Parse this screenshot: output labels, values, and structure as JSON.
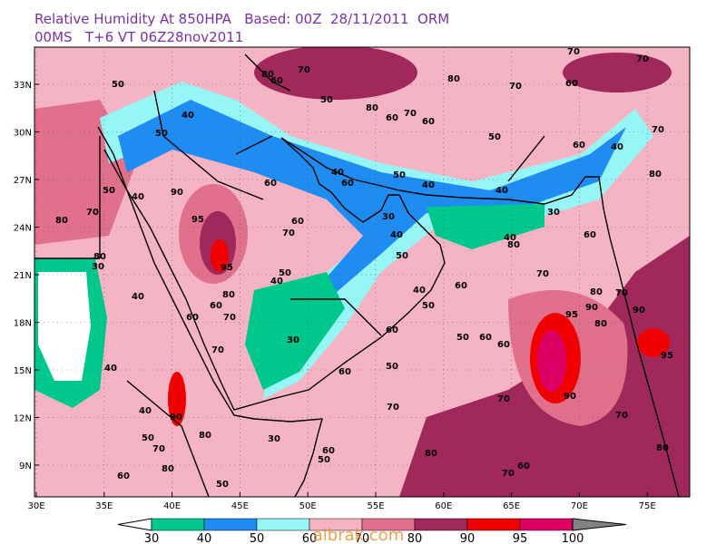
{
  "header": {
    "line1": "Relative Humidity At 850HPA   Based: 00Z  28/11/2011  ORM",
    "line2": "00MS   T+6 VT 06Z28nov2011"
  },
  "map": {
    "lon_labels": [
      "30E",
      "35E",
      "40E",
      "45E",
      "50E",
      "55E",
      "60E",
      "65E",
      "70E",
      "75E"
    ],
    "lat_labels": [
      "33N",
      "30N",
      "27N",
      "24N",
      "21N",
      "18N",
      "15N",
      "12N",
      "9N"
    ],
    "contour_labels": [
      50,
      40,
      50,
      80,
      60,
      70,
      50,
      80,
      60,
      70,
      60,
      80,
      70,
      50,
      70,
      60,
      70,
      70,
      60,
      40,
      80,
      50,
      40,
      80,
      70,
      90,
      95,
      95,
      60,
      60,
      70,
      40,
      60,
      50,
      40,
      40,
      30,
      80,
      40,
      60,
      40,
      50,
      30,
      50,
      40,
      40,
      50,
      60,
      60,
      70,
      80,
      70,
      90,
      95,
      95,
      90,
      80,
      90,
      50,
      60,
      60,
      30,
      70,
      40,
      60,
      50,
      70,
      70,
      70,
      80,
      60,
      70,
      80,
      30,
      60,
      50,
      80,
      50,
      70,
      40,
      90,
      60,
      80,
      50,
      80,
      30,
      60,
      70,
      80,
      60,
      40
    ]
  },
  "legend": {
    "labels": [
      "30",
      "40",
      "50",
      "60",
      "70",
      "80",
      "90",
      "95",
      "100"
    ],
    "colors": [
      "#ffffff",
      "#00c88c",
      "#1e8cf0",
      "#96f5f5",
      "#f5b4c3",
      "#e0708c",
      "#a0285a",
      "#f00000",
      "#dc0064",
      "#828282"
    ]
  },
  "watermark": "albrak.com"
}
